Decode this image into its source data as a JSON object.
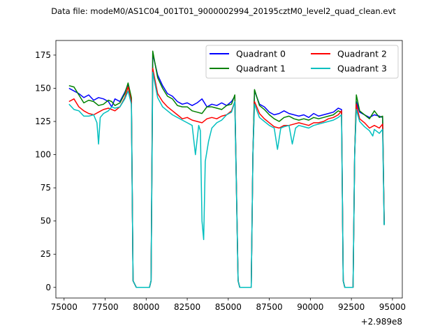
{
  "chart_data": {
    "type": "line",
    "title": "Data file: modeM0/AS1C04_001T01_9000002994_20195cztM0_level2_quad_clean.evt",
    "xlabel": "",
    "ylabel": "",
    "x_offset_label": "+2.989e8",
    "xlim": [
      74500,
      95600
    ],
    "ylim": [
      -8,
      186
    ],
    "x_ticks": [
      75000,
      77500,
      80000,
      82500,
      85000,
      87500,
      90000,
      92500,
      95000
    ],
    "x_tick_labels": [
      "75000",
      "77500",
      "80000",
      "82500",
      "85000",
      "87500",
      "90000",
      "92500",
      "95000"
    ],
    "y_ticks": [
      0,
      25,
      50,
      75,
      100,
      125,
      150,
      175
    ],
    "y_tick_labels": [
      "0",
      "25",
      "50",
      "75",
      "100",
      "125",
      "150",
      "175"
    ],
    "grid": false,
    "legend": {
      "placement": "top-right",
      "columns": 2
    },
    "series": [
      {
        "name": "Quadrant 0",
        "color": "#0000ff",
        "points": [
          [
            75300,
            150
          ],
          [
            75600,
            148
          ],
          [
            75900,
            146
          ],
          [
            76200,
            143
          ],
          [
            76500,
            145
          ],
          [
            76800,
            141
          ],
          [
            77100,
            143
          ],
          [
            77400,
            142
          ],
          [
            77700,
            140
          ],
          [
            77900,
            136
          ],
          [
            78100,
            142
          ],
          [
            78400,
            140
          ],
          [
            78700,
            147
          ],
          [
            78900,
            153
          ],
          [
            79100,
            142
          ],
          [
            79200,
            5
          ],
          [
            79400,
            0
          ],
          [
            80200,
            0
          ],
          [
            80300,
            5
          ],
          [
            80400,
            176
          ],
          [
            80700,
            160
          ],
          [
            81000,
            152
          ],
          [
            81300,
            146
          ],
          [
            81600,
            144
          ],
          [
            81900,
            140
          ],
          [
            82200,
            138
          ],
          [
            82500,
            139
          ],
          [
            82800,
            137
          ],
          [
            83100,
            139
          ],
          [
            83400,
            142
          ],
          [
            83700,
            136
          ],
          [
            84000,
            138
          ],
          [
            84300,
            137
          ],
          [
            84600,
            139
          ],
          [
            84900,
            137
          ],
          [
            85200,
            140
          ],
          [
            85400,
            144
          ],
          [
            85600,
            5
          ],
          [
            85700,
            0
          ],
          [
            86400,
            0
          ],
          [
            86500,
            100
          ],
          [
            86600,
            148
          ],
          [
            86900,
            138
          ],
          [
            87200,
            136
          ],
          [
            87500,
            132
          ],
          [
            87800,
            130
          ],
          [
            88100,
            131
          ],
          [
            88400,
            133
          ],
          [
            88700,
            131
          ],
          [
            89000,
            130
          ],
          [
            89300,
            129
          ],
          [
            89600,
            130
          ],
          [
            89900,
            128
          ],
          [
            90200,
            131
          ],
          [
            90500,
            129
          ],
          [
            90800,
            130
          ],
          [
            91100,
            131
          ],
          [
            91400,
            132
          ],
          [
            91700,
            135
          ],
          [
            91900,
            134
          ],
          [
            92000,
            5
          ],
          [
            92100,
            0
          ],
          [
            92600,
            0
          ],
          [
            92700,
            100
          ],
          [
            92800,
            140
          ],
          [
            93000,
            132
          ],
          [
            93300,
            130
          ],
          [
            93600,
            128
          ],
          [
            93900,
            130
          ],
          [
            94200,
            129
          ],
          [
            94400,
            128
          ],
          [
            94500,
            47
          ]
        ]
      },
      {
        "name": "Quadrant 1",
        "color": "#008000",
        "points": [
          [
            75300,
            152
          ],
          [
            75600,
            151
          ],
          [
            75900,
            145
          ],
          [
            76200,
            139
          ],
          [
            76500,
            141
          ],
          [
            76800,
            140
          ],
          [
            77100,
            137
          ],
          [
            77400,
            138
          ],
          [
            77700,
            141
          ],
          [
            77900,
            140
          ],
          [
            78100,
            137
          ],
          [
            78400,
            139
          ],
          [
            78700,
            146
          ],
          [
            78900,
            154
          ],
          [
            79100,
            143
          ],
          [
            79200,
            5
          ],
          [
            79400,
            0
          ],
          [
            80200,
            0
          ],
          [
            80300,
            5
          ],
          [
            80400,
            178
          ],
          [
            80700,
            158
          ],
          [
            81000,
            150
          ],
          [
            81300,
            144
          ],
          [
            81600,
            142
          ],
          [
            81900,
            137
          ],
          [
            82200,
            136
          ],
          [
            82500,
            136
          ],
          [
            82800,
            133
          ],
          [
            83100,
            132
          ],
          [
            83400,
            131
          ],
          [
            83700,
            136
          ],
          [
            84000,
            136
          ],
          [
            84300,
            135
          ],
          [
            84600,
            134
          ],
          [
            84900,
            137
          ],
          [
            85200,
            138
          ],
          [
            85400,
            145
          ],
          [
            85600,
            5
          ],
          [
            85700,
            0
          ],
          [
            86400,
            0
          ],
          [
            86500,
            100
          ],
          [
            86600,
            149
          ],
          [
            86900,
            137
          ],
          [
            87200,
            134
          ],
          [
            87500,
            130
          ],
          [
            87800,
            127
          ],
          [
            88100,
            125
          ],
          [
            88400,
            128
          ],
          [
            88700,
            129
          ],
          [
            89000,
            127
          ],
          [
            89300,
            126
          ],
          [
            89600,
            127
          ],
          [
            89900,
            126
          ],
          [
            90200,
            128
          ],
          [
            90500,
            127
          ],
          [
            90800,
            128
          ],
          [
            91100,
            129
          ],
          [
            91400,
            130
          ],
          [
            91700,
            133
          ],
          [
            91900,
            132
          ],
          [
            92000,
            5
          ],
          [
            92100,
            0
          ],
          [
            92600,
            0
          ],
          [
            92700,
            100
          ],
          [
            92800,
            145
          ],
          [
            93000,
            133
          ],
          [
            93300,
            130
          ],
          [
            93600,
            127
          ],
          [
            93900,
            133
          ],
          [
            94200,
            128
          ],
          [
            94400,
            129
          ],
          [
            94500,
            47
          ]
        ]
      },
      {
        "name": "Quadrant 2",
        "color": "#ff0000",
        "points": [
          [
            75300,
            140
          ],
          [
            75600,
            142
          ],
          [
            75900,
            136
          ],
          [
            76200,
            133
          ],
          [
            76500,
            131
          ],
          [
            76800,
            130
          ],
          [
            77100,
            132
          ],
          [
            77400,
            134
          ],
          [
            77700,
            135
          ],
          [
            77900,
            134
          ],
          [
            78100,
            133
          ],
          [
            78400,
            136
          ],
          [
            78700,
            143
          ],
          [
            78900,
            151
          ],
          [
            79100,
            140
          ],
          [
            79200,
            5
          ],
          [
            79400,
            0
          ],
          [
            80200,
            0
          ],
          [
            80300,
            5
          ],
          [
            80400,
            165
          ],
          [
            80700,
            146
          ],
          [
            81000,
            140
          ],
          [
            81300,
            136
          ],
          [
            81600,
            133
          ],
          [
            81900,
            130
          ],
          [
            82200,
            127
          ],
          [
            82500,
            128
          ],
          [
            82800,
            126
          ],
          [
            83100,
            125
          ],
          [
            83400,
            124
          ],
          [
            83700,
            127
          ],
          [
            84000,
            128
          ],
          [
            84300,
            127
          ],
          [
            84600,
            129
          ],
          [
            84900,
            130
          ],
          [
            85200,
            133
          ],
          [
            85400,
            140
          ],
          [
            85600,
            5
          ],
          [
            85700,
            0
          ],
          [
            86400,
            0
          ],
          [
            86500,
            100
          ],
          [
            86600,
            140
          ],
          [
            86900,
            131
          ],
          [
            87200,
            127
          ],
          [
            87500,
            124
          ],
          [
            87800,
            121
          ],
          [
            88100,
            120
          ],
          [
            88400,
            122
          ],
          [
            88700,
            122
          ],
          [
            89000,
            123
          ],
          [
            89300,
            124
          ],
          [
            89600,
            123
          ],
          [
            89900,
            122
          ],
          [
            90200,
            124
          ],
          [
            90500,
            124
          ],
          [
            90800,
            125
          ],
          [
            91100,
            127
          ],
          [
            91400,
            128
          ],
          [
            91700,
            130
          ],
          [
            91900,
            133
          ],
          [
            92000,
            5
          ],
          [
            92100,
            0
          ],
          [
            92600,
            0
          ],
          [
            92700,
            100
          ],
          [
            92800,
            138
          ],
          [
            93000,
            127
          ],
          [
            93300,
            124
          ],
          [
            93600,
            120
          ],
          [
            93900,
            122
          ],
          [
            94200,
            120
          ],
          [
            94400,
            123
          ],
          [
            94500,
            50
          ]
        ]
      },
      {
        "name": "Quadrant 3",
        "color": "#00bfbf",
        "points": [
          [
            75300,
            138
          ],
          [
            75600,
            134
          ],
          [
            75900,
            133
          ],
          [
            76200,
            129
          ],
          [
            76500,
            129
          ],
          [
            76800,
            130
          ],
          [
            77000,
            124
          ],
          [
            77100,
            108
          ],
          [
            77200,
            128
          ],
          [
            77400,
            131
          ],
          [
            77700,
            133
          ],
          [
            77900,
            136
          ],
          [
            78100,
            135
          ],
          [
            78400,
            136
          ],
          [
            78700,
            142
          ],
          [
            78900,
            148
          ],
          [
            79100,
            138
          ],
          [
            79200,
            5
          ],
          [
            79400,
            0
          ],
          [
            80200,
            0
          ],
          [
            80300,
            5
          ],
          [
            80400,
            162
          ],
          [
            80700,
            143
          ],
          [
            81000,
            136
          ],
          [
            81300,
            133
          ],
          [
            81600,
            130
          ],
          [
            81900,
            128
          ],
          [
            82200,
            126
          ],
          [
            82500,
            124
          ],
          [
            82800,
            122
          ],
          [
            83000,
            100
          ],
          [
            83200,
            122
          ],
          [
            83300,
            118
          ],
          [
            83400,
            50
          ],
          [
            83500,
            36
          ],
          [
            83600,
            95
          ],
          [
            83800,
            110
          ],
          [
            84000,
            120
          ],
          [
            84300,
            124
          ],
          [
            84600,
            126
          ],
          [
            84900,
            130
          ],
          [
            85200,
            132
          ],
          [
            85400,
            140
          ],
          [
            85600,
            5
          ],
          [
            85700,
            0
          ],
          [
            86400,
            0
          ],
          [
            86500,
            100
          ],
          [
            86600,
            138
          ],
          [
            86900,
            128
          ],
          [
            87200,
            125
          ],
          [
            87500,
            122
          ],
          [
            87800,
            120
          ],
          [
            88000,
            104
          ],
          [
            88200,
            120
          ],
          [
            88400,
            121
          ],
          [
            88700,
            122
          ],
          [
            88900,
            108
          ],
          [
            89100,
            120
          ],
          [
            89300,
            122
          ],
          [
            89600,
            121
          ],
          [
            89900,
            120
          ],
          [
            90200,
            122
          ],
          [
            90500,
            123
          ],
          [
            90800,
            124
          ],
          [
            91100,
            125
          ],
          [
            91400,
            126
          ],
          [
            91700,
            128
          ],
          [
            91900,
            130
          ],
          [
            92000,
            5
          ],
          [
            92100,
            0
          ],
          [
            92600,
            0
          ],
          [
            92700,
            100
          ],
          [
            92800,
            134
          ],
          [
            93000,
            125
          ],
          [
            93300,
            121
          ],
          [
            93600,
            118
          ],
          [
            93800,
            114
          ],
          [
            93900,
            119
          ],
          [
            94200,
            116
          ],
          [
            94400,
            119
          ],
          [
            94500,
            47
          ]
        ]
      }
    ]
  }
}
